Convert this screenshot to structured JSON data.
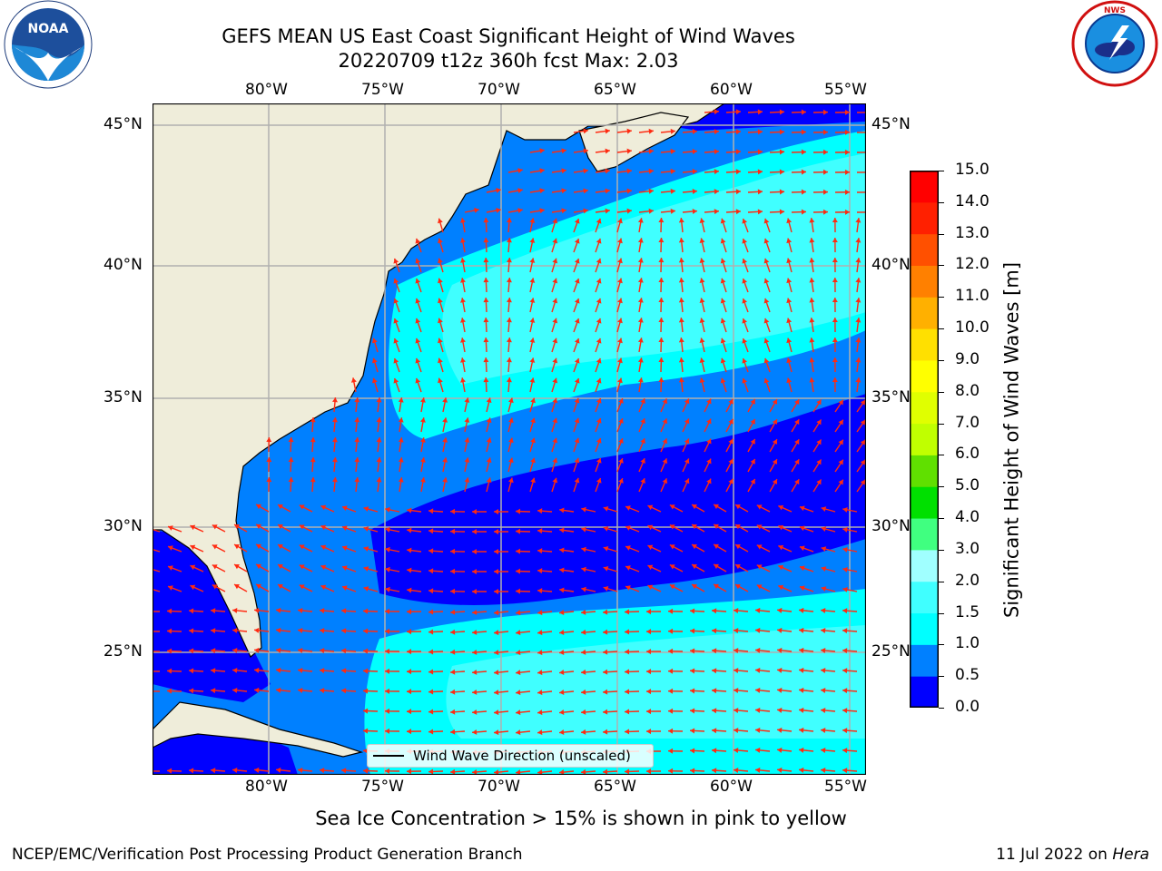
{
  "title": {
    "line1": "GEFS MEAN US East Coast Significant Height of Wind Waves",
    "line2": "20220709 t12z 360h fcst   Max: 2.03"
  },
  "map": {
    "lon_ticks": [
      "80°W",
      "75°W",
      "70°W",
      "65°W",
      "60°W",
      "55°W"
    ],
    "lat_ticks": [
      "45°N",
      "40°N",
      "35°N",
      "30°N",
      "25°N"
    ],
    "extent": {
      "lon": [
        -85,
        -54.3
      ],
      "lat": [
        20.5,
        46
      ]
    },
    "colors": {
      "land": "#efedda",
      "coast": "#000000",
      "grid": "#b0b0b0",
      "arrow": "#ff2a10"
    }
  },
  "legend": {
    "label": "Wind Wave Direction (unscaled)"
  },
  "colorbar": {
    "label": "Significant Height of Wind Waves [m]",
    "ticks": [
      "0.0",
      "0.5",
      "1.0",
      "1.5",
      "2.0",
      "3.0",
      "4.0",
      "5.0",
      "6.0",
      "7.0",
      "8.0",
      "9.0",
      "10.0",
      "11.0",
      "12.0",
      "13.0",
      "14.0",
      "15.0"
    ],
    "colors": [
      "#0000ff",
      "#0080ff",
      "#00ffff",
      "#40ffff",
      "#a0ffff",
      "#40ff80",
      "#00e000",
      "#60e000",
      "#c0ff00",
      "#e0ff00",
      "#ffff00",
      "#ffe000",
      "#ffb000",
      "#ff8000",
      "#ff5000",
      "#ff2000",
      "#ff0000"
    ]
  },
  "chart_data": {
    "type": "heatmap",
    "title": "GEFS MEAN US East Coast Significant Height of Wind Waves",
    "subtitle": "20220709 t12z 360h fcst   Max: 2.03",
    "zlabel": "Significant Height of Wind Waves [m]",
    "zlim": [
      0,
      15
    ],
    "max_value": 2.03
  },
  "logos": {
    "left": "NOAA",
    "right": "NATIONAL WEATHER SERVICE"
  },
  "note": "Sea Ice Concentration > 15% is shown in pink to yellow",
  "footer": {
    "left": "NCEP/EMC/Verification Post Processing Product Generation Branch",
    "date": "11 Jul 2022 on ",
    "machine": "Hera"
  }
}
